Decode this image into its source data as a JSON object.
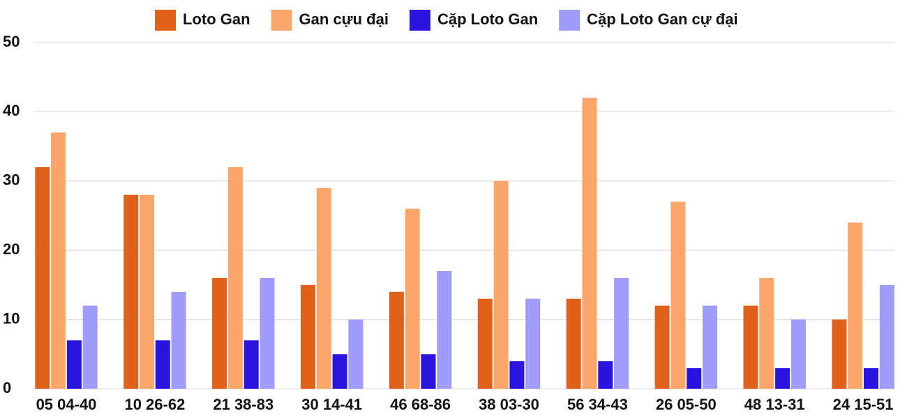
{
  "chart_data": {
    "type": "bar",
    "categories": [
      "05 04-40",
      "10 26-62",
      "21 38-83",
      "30 14-41",
      "46 68-86",
      "38 03-30",
      "56 34-43",
      "26 05-50",
      "48 13-31",
      "24 15-51"
    ],
    "series": [
      {
        "name": "Loto Gan",
        "color": "#e0621a",
        "values": [
          32,
          28,
          16,
          15,
          14,
          13,
          13,
          12,
          12,
          10
        ]
      },
      {
        "name": "Gan cựu đại",
        "color": "#fca66b",
        "values": [
          37,
          28,
          32,
          29,
          26,
          30,
          42,
          27,
          16,
          24
        ]
      },
      {
        "name": "Cặp Loto Gan",
        "color": "#2b14e0",
        "values": [
          7,
          7,
          7,
          5,
          5,
          4,
          4,
          3,
          3,
          3
        ]
      },
      {
        "name": "Cặp Loto Gan cự đại",
        "color": "#a09cfb",
        "values": [
          12,
          14,
          16,
          10,
          17,
          13,
          16,
          12,
          10,
          15
        ]
      }
    ],
    "ylim": [
      0,
      50
    ],
    "yticks": [
      0,
      10,
      20,
      30,
      40,
      50
    ],
    "grid": true,
    "legend": "top"
  }
}
